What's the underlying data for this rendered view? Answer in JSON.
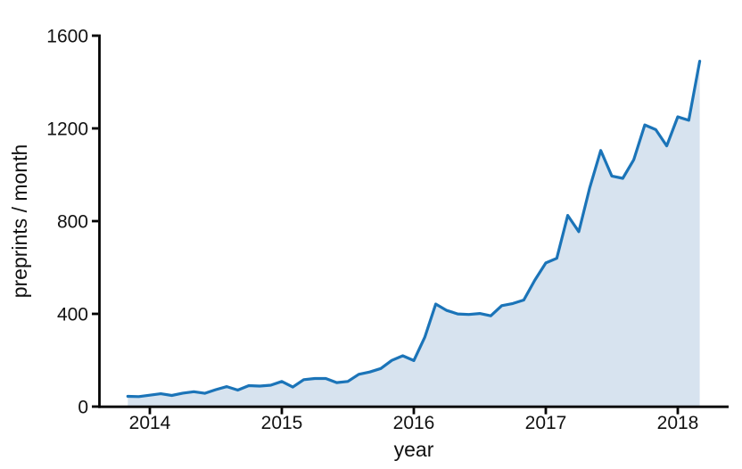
{
  "chart_data": {
    "type": "area",
    "title": "",
    "xlabel": "year",
    "ylabel": "preprints / month",
    "ylim": [
      0,
      1600
    ],
    "y_ticks": [
      0,
      400,
      800,
      1200,
      1600
    ],
    "x_tick_labels": [
      "2014",
      "2015",
      "2016",
      "2017",
      "2018"
    ],
    "grid": false,
    "legend": "none",
    "x": [
      "2013-11",
      "2013-12",
      "2014-01",
      "2014-02",
      "2014-03",
      "2014-04",
      "2014-05",
      "2014-06",
      "2014-07",
      "2014-08",
      "2014-09",
      "2014-10",
      "2014-11",
      "2014-12",
      "2015-01",
      "2015-02",
      "2015-03",
      "2015-04",
      "2015-05",
      "2015-06",
      "2015-07",
      "2015-08",
      "2015-09",
      "2015-10",
      "2015-11",
      "2015-12",
      "2016-01",
      "2016-02",
      "2016-03",
      "2016-04",
      "2016-05",
      "2016-06",
      "2016-07",
      "2016-08",
      "2016-09",
      "2016-10",
      "2016-11",
      "2016-12",
      "2017-01",
      "2017-02",
      "2017-03",
      "2017-04",
      "2017-05",
      "2017-06",
      "2017-07",
      "2017-08",
      "2017-09",
      "2017-10",
      "2017-11",
      "2017-12",
      "2018-01",
      "2018-02",
      "2018-03"
    ],
    "values": [
      45,
      44,
      50,
      56,
      49,
      59,
      65,
      58,
      74,
      87,
      72,
      91,
      89,
      93,
      109,
      85,
      117,
      122,
      122,
      104,
      109,
      140,
      150,
      165,
      200,
      220,
      199,
      300,
      443,
      415,
      400,
      398,
      402,
      392,
      436,
      445,
      460,
      545,
      620,
      640,
      825,
      755,
      945,
      1105,
      995,
      985,
      1065,
      1215,
      1195,
      1125,
      1250,
      1235,
      1490
    ],
    "colors": {
      "line": "#1b74b8",
      "fill": "#d7e3ef",
      "axis": "#000000"
    }
  }
}
